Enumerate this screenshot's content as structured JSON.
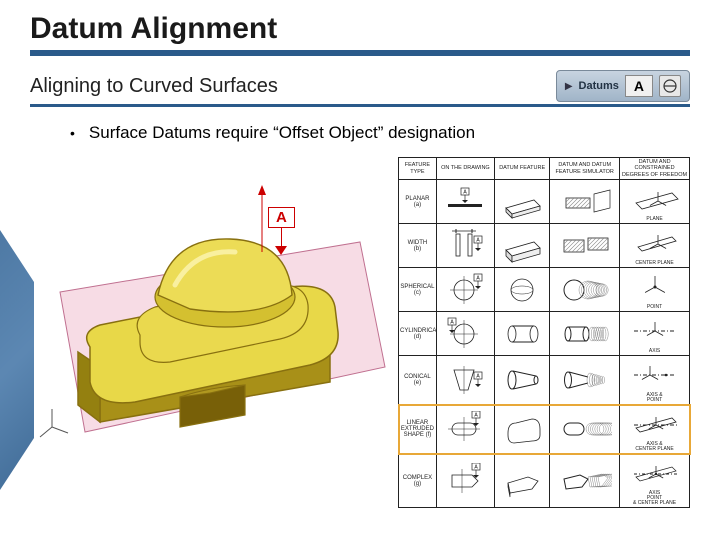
{
  "title": "Datum Alignment",
  "subtitle": "Aligning to Curved Surfaces",
  "badge": {
    "label": "Datums",
    "letter": "A"
  },
  "bullet": "Surface Datums require “Offset Object” designation",
  "datum_flag": "A",
  "colors": {
    "accent": "#2a5a8a",
    "part_top": "#e8d848",
    "part_side": "#c8b020",
    "part_edge": "#887010",
    "plane_fill": "#f0c0d0",
    "plane_edge": "#c07090",
    "datum_red": "#c00000",
    "table_border": "#222222",
    "highlight": "#e8a838",
    "hatch": "#888888"
  },
  "table": {
    "headers": [
      "FEATURE\nTYPE",
      "ON THE DRAWING",
      "DATUM\nFEATURE",
      "DATUM AND DATUM\nFEATURE SIMULATOR",
      "DATUM AND\nCONSTRAINED\nDEGREES OF FREEDOM"
    ],
    "rows": [
      {
        "label": "PLANAR\n(a)",
        "note": "PLANE"
      },
      {
        "label": "WIDTH\n(b)",
        "note": "CENTER PLANE"
      },
      {
        "label": "SPHERICAL\n(c)",
        "note": "POINT"
      },
      {
        "label": "CYLINDRICAL\n(d)",
        "note": "AXIS"
      },
      {
        "label": "CONICAL\n(e)",
        "note": "AXIS &\nPOINT"
      },
      {
        "label": "LINEAR\nEXTRUDED\nSHAPE (f)",
        "note": "AXIS &\nCENTER PLANE",
        "highlight": true
      },
      {
        "label": "COMPLEX\n(g)",
        "note": "AXIS\nPOINT\n& CENTER PLANE"
      }
    ],
    "highlight_row_index": 5
  }
}
